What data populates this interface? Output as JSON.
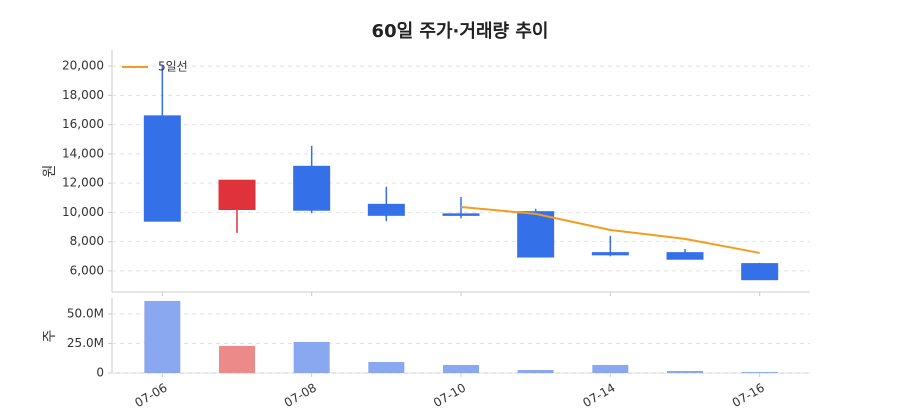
{
  "chart_data": [
    {
      "type": "candlestick",
      "title": "60일 주가·거래량 추이",
      "y_label": "원",
      "categories": [
        "07-06",
        null,
        "07-08",
        null,
        "07-10",
        null,
        "07-14",
        null,
        "07-16"
      ],
      "open": [
        16600,
        10200,
        13150,
        10550,
        9900,
        10050,
        7250,
        7250,
        6500
      ],
      "high": [
        20000,
        12200,
        14550,
        11750,
        11050,
        10250,
        8400,
        7500,
        6550
      ],
      "low": [
        9400,
        8600,
        9950,
        9400,
        9600,
        6950,
        7000,
        6800,
        5400
      ],
      "close": [
        9400,
        12200,
        10150,
        9800,
        9800,
        6950,
        7100,
        6800,
        5400
      ],
      "up_color": "#e0323a",
      "down_color": "#3470e8",
      "series": [
        {
          "name": "5일선",
          "color": "#f29d1e",
          "values": [
            null,
            null,
            null,
            null,
            10370,
            9900,
            8800,
            8190,
            7230
          ]
        }
      ],
      "ylim": [
        4560,
        21100
      ],
      "yticks": [
        {
          "value": 6000,
          "label": "6,000"
        },
        {
          "value": 8000,
          "label": "8,000"
        },
        {
          "value": 10000,
          "label": "10,000"
        },
        {
          "value": 12000,
          "label": "12,000"
        },
        {
          "value": 14000,
          "label": "14,000"
        },
        {
          "value": 16000,
          "label": "16,000"
        },
        {
          "value": 18000,
          "label": "18,000"
        },
        {
          "value": 20000,
          "label": "20,000"
        }
      ],
      "grid": true,
      "legend": "upper left"
    },
    {
      "type": "bar",
      "y_label": "주",
      "values": [
        61000000,
        22900000,
        26300000,
        9300000,
        6800000,
        2500000,
        6800000,
        1700000,
        800000
      ],
      "colors": [
        "#8aa8f0",
        "#ec8a8a",
        "#8aa8f0",
        "#8aa8f0",
        "#8aa8f0",
        "#8aa8f0",
        "#8aa8f0",
        "#8aa8f0",
        "#8aa8f0"
      ],
      "ylim": [
        0,
        63500000
      ],
      "yticks": [
        0,
        {
          "value": 25000000,
          "label": "25.0M"
        },
        {
          "value": 50000000,
          "label": "50.0M"
        }
      ],
      "grid": true
    }
  ]
}
